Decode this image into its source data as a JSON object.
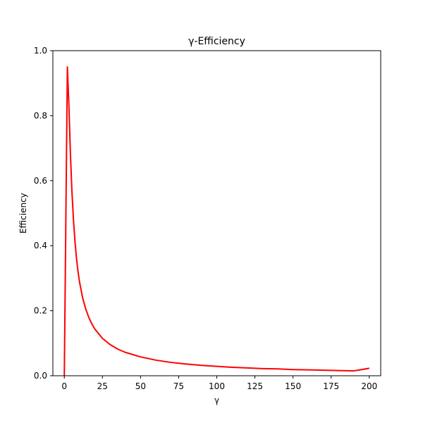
{
  "colors": {
    "background": "#ffffff",
    "axes": "#000000",
    "series": "#ff0000"
  },
  "chart_data": {
    "type": "line",
    "title": "γ-Efficiency",
    "xlabel": "γ",
    "ylabel": "Efficiency",
    "xlim": [
      -7.5,
      207.5
    ],
    "ylim": [
      0,
      1.0
    ],
    "grid": false,
    "legend": "none",
    "xticks": [
      0,
      25,
      50,
      75,
      100,
      125,
      150,
      175,
      200
    ],
    "xtick_labels": [
      "0",
      "25",
      "50",
      "75",
      "100",
      "125",
      "150",
      "175",
      "200"
    ],
    "yticks": [
      0.0,
      0.2,
      0.4,
      0.6,
      0.8,
      1.0
    ],
    "ytick_labels": [
      "0.0",
      "0.2",
      "0.4",
      "0.6",
      "0.8",
      "1.0"
    ],
    "series": [
      {
        "color": "#ff0000",
        "x": [
          0,
          2,
          3,
          4,
          5,
          6,
          7,
          8,
          9,
          10,
          12,
          14,
          16,
          18,
          20,
          25,
          30,
          35,
          40,
          50,
          60,
          70,
          80,
          90,
          100,
          110,
          120,
          130,
          140,
          150,
          160,
          170,
          180,
          190,
          200
        ],
        "y": [
          0.0,
          0.95,
          0.833,
          0.683,
          0.567,
          0.48,
          0.413,
          0.361,
          0.32,
          0.288,
          0.24,
          0.206,
          0.18,
          0.16,
          0.144,
          0.115,
          0.096,
          0.082,
          0.072,
          0.058,
          0.048,
          0.041,
          0.036,
          0.032,
          0.029,
          0.026,
          0.024,
          0.022,
          0.021,
          0.019,
          0.018,
          0.017,
          0.016,
          0.015,
          0.023
        ]
      }
    ]
  }
}
